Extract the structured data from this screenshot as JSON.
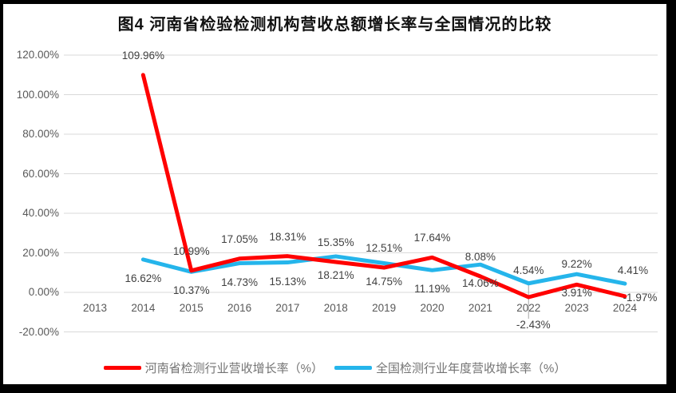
{
  "chart_data": {
    "type": "line",
    "title": "图4  河南省检验检测机构营收总额增长率与全国情况的比较",
    "categories": [
      "2013",
      "2014",
      "2015",
      "2016",
      "2017",
      "2018",
      "2019",
      "2020",
      "2021",
      "2022",
      "2023",
      "2024"
    ],
    "series": [
      {
        "key": "henan",
        "name": "河南省检测行业营收增长率（%）",
        "color": "#FF0000",
        "values": [
          null,
          109.96,
          10.99,
          17.05,
          18.31,
          15.35,
          12.51,
          17.64,
          8.08,
          -2.43,
          3.91,
          -1.97
        ],
        "labels": [
          "",
          "109.96%",
          "10.99%",
          "17.05%",
          "18.31%",
          "15.35%",
          "12.51%",
          "17.64%",
          "8.08%",
          "-2.43%",
          "3.91%",
          "-1.97%"
        ],
        "label_default_offset": [
          0,
          -24
        ],
        "label_offsets": {
          "9": [
            6,
            35
          ],
          "10": [
            0,
            11
          ],
          "11": [
            19,
            2
          ]
        }
      },
      {
        "key": "national",
        "name": "全国检测行业年度营收增长率（%）",
        "color": "#25B5EB",
        "values": [
          null,
          16.62,
          10.37,
          14.73,
          15.13,
          18.21,
          14.75,
          11.19,
          14.06,
          4.54,
          9.22,
          4.41
        ],
        "labels": [
          "",
          "16.62%",
          "10.37%",
          "14.73%",
          "15.13%",
          "18.21%",
          "14.75%",
          "11.19%",
          "14.06%",
          "4.54%",
          "9.22%",
          "4.41%"
        ],
        "label_default_offset": [
          0,
          24
        ],
        "label_offsets": {
          "9": [
            0,
            -16
          ],
          "10": [
            0,
            -12
          ],
          "11": [
            10,
            -16
          ]
        }
      }
    ],
    "ytick_values": [
      120,
      100,
      80,
      60,
      40,
      20,
      0,
      -20
    ],
    "ytick_labels": [
      "120.00%",
      "100.00%",
      "80.00%",
      "60.00%",
      "40.00%",
      "20.00%",
      "0.00%",
      "-20.00%"
    ],
    "ylim": [
      -20,
      120
    ],
    "grid": true,
    "legend_position": "bottom",
    "leader_line": {
      "series": 0,
      "category_index": 9
    }
  },
  "colors": {
    "frame_border": "#000000",
    "background": "#FFFFFF",
    "gridline": "#D9D9D9",
    "axis_text": "#595959",
    "data_label_text": "#404040",
    "legend_text": "#737373",
    "leader": "#A6A6A6"
  }
}
